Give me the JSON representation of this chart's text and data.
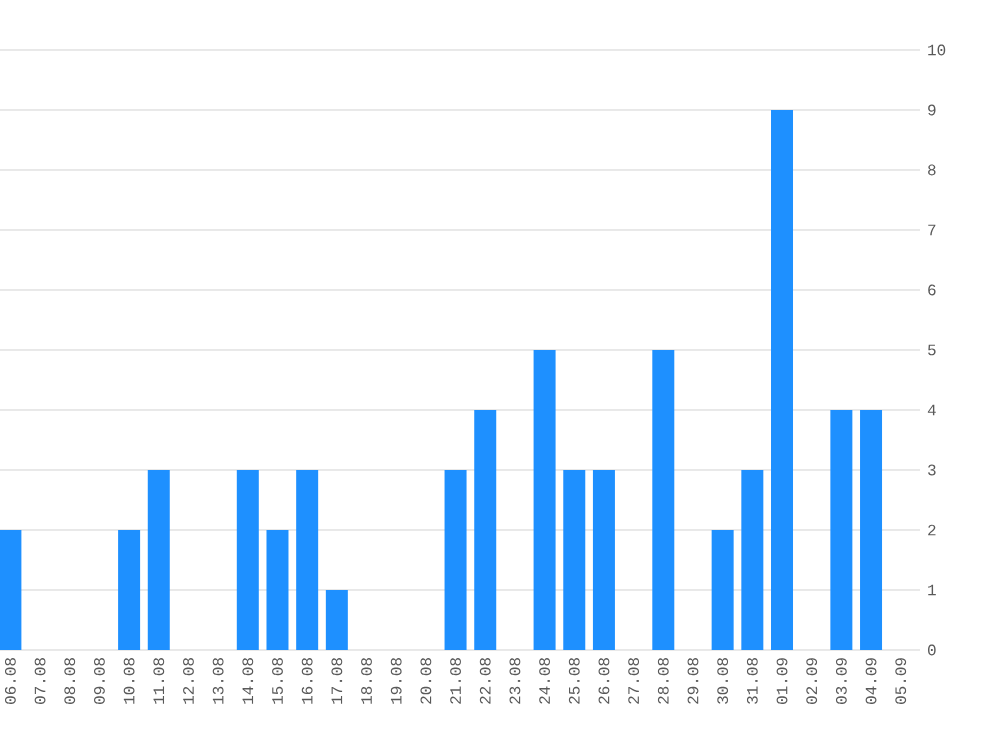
{
  "chart_data": {
    "type": "bar",
    "categories": [
      "06.08",
      "07.08",
      "08.08",
      "09.08",
      "10.08",
      "11.08",
      "12.08",
      "13.08",
      "14.08",
      "15.08",
      "16.08",
      "17.08",
      "18.08",
      "19.08",
      "20.08",
      "21.08",
      "22.08",
      "23.08",
      "24.08",
      "25.08",
      "26.08",
      "27.08",
      "28.08",
      "29.08",
      "30.08",
      "31.08",
      "01.09",
      "02.09",
      "03.09",
      "04.09",
      "05.09"
    ],
    "values": [
      2,
      0,
      0,
      0,
      2,
      3,
      0,
      0,
      3,
      2,
      3,
      1,
      0,
      0,
      0,
      3,
      4,
      0,
      5,
      3,
      3,
      0,
      5,
      0,
      2,
      3,
      9,
      0,
      4,
      4,
      0
    ],
    "color": "#1e90ff",
    "ylim": [
      0,
      10
    ],
    "yticks": [
      0,
      1,
      2,
      3,
      4,
      5,
      6,
      7,
      8,
      9,
      10
    ],
    "grid": "y"
  }
}
